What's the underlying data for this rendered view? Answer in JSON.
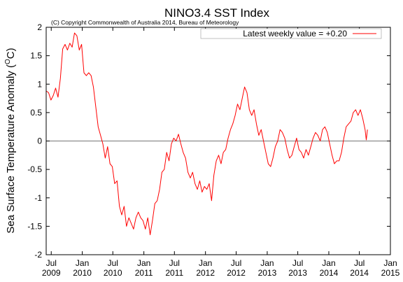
{
  "chart_data": {
    "type": "line",
    "title": "NINO3.4 SST Index",
    "subtitle": "(C) Copyright Commonwealth of Australia 2014, Bureau of Meteorology",
    "ylabel": "Sea Surface Temperature Anomaly (",
    "ylabel_unit": "C",
    "ylabel_sup": "O",
    "ylabel_close": ")",
    "xlabel": "",
    "ylim": [
      -2,
      2
    ],
    "yticks": [
      -2,
      -1.5,
      -1,
      -0.5,
      0,
      0.5,
      1,
      1.5,
      2
    ],
    "ytick_labels": [
      "-2",
      "-1.5",
      "-1",
      "-0.5",
      "0",
      "0.5",
      "1",
      "1.5",
      "2"
    ],
    "xlim": [
      "2009-06-01",
      "2015-01-01"
    ],
    "xticks": [
      {
        "date": "2009-07-01",
        "month": "Jul",
        "year": "2009"
      },
      {
        "date": "2010-01-01",
        "month": "Jan",
        "year": "2010"
      },
      {
        "date": "2010-07-01",
        "month": "Jul",
        "year": "2010"
      },
      {
        "date": "2011-01-01",
        "month": "Jan",
        "year": "2011"
      },
      {
        "date": "2011-07-01",
        "month": "Jul",
        "year": "2011"
      },
      {
        "date": "2012-01-01",
        "month": "Jan",
        "year": "2012"
      },
      {
        "date": "2012-07-01",
        "month": "Jul",
        "year": "2012"
      },
      {
        "date": "2013-01-01",
        "month": "Jan",
        "year": "2013"
      },
      {
        "date": "2013-07-01",
        "month": "Jul",
        "year": "2013"
      },
      {
        "date": "2014-01-01",
        "month": "Jan",
        "year": "2014"
      },
      {
        "date": "2014-07-01",
        "month": "Jul",
        "year": "2014"
      },
      {
        "date": "2015-01-01",
        "month": "Jan",
        "year": "2015"
      }
    ],
    "zero_line": true,
    "grid": false,
    "legend_position": "top-right",
    "series": [
      {
        "name": "Latest weekly value = +0.20",
        "color": "#ff0000",
        "points": [
          [
            "2009-06-01",
            0.88
          ],
          [
            "2009-06-15",
            0.85
          ],
          [
            "2009-06-29",
            0.72
          ],
          [
            "2009-07-13",
            0.8
          ],
          [
            "2009-07-27",
            0.93
          ],
          [
            "2009-08-10",
            0.77
          ],
          [
            "2009-08-24",
            1.1
          ],
          [
            "2009-09-07",
            1.62
          ],
          [
            "2009-09-21",
            1.7
          ],
          [
            "2009-10-05",
            1.6
          ],
          [
            "2009-10-19",
            1.72
          ],
          [
            "2009-11-02",
            1.65
          ],
          [
            "2009-11-16",
            1.9
          ],
          [
            "2009-11-30",
            1.85
          ],
          [
            "2009-12-14",
            1.6
          ],
          [
            "2009-12-28",
            1.7
          ],
          [
            "2010-01-11",
            1.2
          ],
          [
            "2010-01-25",
            1.15
          ],
          [
            "2010-02-08",
            1.2
          ],
          [
            "2010-02-22",
            1.15
          ],
          [
            "2010-03-08",
            0.95
          ],
          [
            "2010-03-22",
            0.6
          ],
          [
            "2010-04-05",
            0.25
          ],
          [
            "2010-04-19",
            0.1
          ],
          [
            "2010-05-03",
            -0.05
          ],
          [
            "2010-05-17",
            -0.3
          ],
          [
            "2010-05-31",
            -0.1
          ],
          [
            "2010-06-14",
            -0.4
          ],
          [
            "2010-06-28",
            -0.45
          ],
          [
            "2010-07-12",
            -0.75
          ],
          [
            "2010-07-26",
            -0.7
          ],
          [
            "2010-08-09",
            -1.15
          ],
          [
            "2010-08-23",
            -1.3
          ],
          [
            "2010-09-06",
            -1.15
          ],
          [
            "2010-09-20",
            -1.5
          ],
          [
            "2010-10-04",
            -1.35
          ],
          [
            "2010-10-18",
            -1.45
          ],
          [
            "2010-11-01",
            -1.55
          ],
          [
            "2010-11-15",
            -1.35
          ],
          [
            "2010-11-29",
            -1.25
          ],
          [
            "2010-12-13",
            -1.35
          ],
          [
            "2010-12-27",
            -1.4
          ],
          [
            "2011-01-10",
            -1.55
          ],
          [
            "2011-01-24",
            -1.35
          ],
          [
            "2011-02-07",
            -1.65
          ],
          [
            "2011-02-21",
            -1.4
          ],
          [
            "2011-03-07",
            -1.1
          ],
          [
            "2011-03-21",
            -1.05
          ],
          [
            "2011-04-04",
            -0.85
          ],
          [
            "2011-04-18",
            -0.55
          ],
          [
            "2011-05-02",
            -0.5
          ],
          [
            "2011-05-16",
            -0.2
          ],
          [
            "2011-05-30",
            -0.35
          ],
          [
            "2011-06-13",
            -0.05
          ],
          [
            "2011-06-27",
            0.05
          ],
          [
            "2011-07-11",
            0.0
          ],
          [
            "2011-07-25",
            0.12
          ],
          [
            "2011-08-08",
            -0.05
          ],
          [
            "2011-08-22",
            -0.2
          ],
          [
            "2011-09-05",
            -0.3
          ],
          [
            "2011-09-19",
            -0.55
          ],
          [
            "2011-10-03",
            -0.65
          ],
          [
            "2011-10-17",
            -0.55
          ],
          [
            "2011-10-31",
            -0.75
          ],
          [
            "2011-11-14",
            -0.85
          ],
          [
            "2011-11-28",
            -0.7
          ],
          [
            "2011-12-12",
            -0.9
          ],
          [
            "2011-12-26",
            -0.8
          ],
          [
            "2012-01-09",
            -0.85
          ],
          [
            "2012-01-23",
            -0.75
          ],
          [
            "2012-02-06",
            -1.05
          ],
          [
            "2012-02-20",
            -0.6
          ],
          [
            "2012-03-05",
            -0.35
          ],
          [
            "2012-03-19",
            -0.25
          ],
          [
            "2012-04-02",
            -0.4
          ],
          [
            "2012-04-16",
            -0.2
          ],
          [
            "2012-04-30",
            -0.15
          ],
          [
            "2012-05-14",
            0.05
          ],
          [
            "2012-05-28",
            0.2
          ],
          [
            "2012-06-11",
            0.3
          ],
          [
            "2012-06-25",
            0.45
          ],
          [
            "2012-07-09",
            0.65
          ],
          [
            "2012-07-23",
            0.55
          ],
          [
            "2012-08-06",
            0.75
          ],
          [
            "2012-08-20",
            0.95
          ],
          [
            "2012-09-03",
            0.85
          ],
          [
            "2012-09-17",
            0.55
          ],
          [
            "2012-10-01",
            0.45
          ],
          [
            "2012-10-15",
            0.55
          ],
          [
            "2012-10-29",
            0.3
          ],
          [
            "2012-11-12",
            0.1
          ],
          [
            "2012-11-26",
            0.2
          ],
          [
            "2012-12-10",
            0.0
          ],
          [
            "2012-12-24",
            -0.2
          ],
          [
            "2013-01-07",
            -0.4
          ],
          [
            "2013-01-21",
            -0.45
          ],
          [
            "2013-02-04",
            -0.3
          ],
          [
            "2013-02-18",
            -0.1
          ],
          [
            "2013-03-04",
            0.0
          ],
          [
            "2013-03-18",
            0.2
          ],
          [
            "2013-04-01",
            0.15
          ],
          [
            "2013-04-15",
            0.05
          ],
          [
            "2013-04-29",
            -0.15
          ],
          [
            "2013-05-13",
            -0.3
          ],
          [
            "2013-05-27",
            -0.25
          ],
          [
            "2013-06-10",
            -0.1
          ],
          [
            "2013-06-24",
            0.05
          ],
          [
            "2013-07-08",
            -0.15
          ],
          [
            "2013-07-22",
            -0.2
          ],
          [
            "2013-08-05",
            -0.3
          ],
          [
            "2013-08-19",
            -0.15
          ],
          [
            "2013-09-02",
            -0.25
          ],
          [
            "2013-09-16",
            -0.1
          ],
          [
            "2013-09-30",
            0.05
          ],
          [
            "2013-10-14",
            0.15
          ],
          [
            "2013-10-28",
            0.1
          ],
          [
            "2013-11-11",
            0.0
          ],
          [
            "2013-11-25",
            0.2
          ],
          [
            "2013-12-09",
            0.25
          ],
          [
            "2013-12-23",
            0.15
          ],
          [
            "2014-01-06",
            -0.05
          ],
          [
            "2014-01-20",
            -0.25
          ],
          [
            "2014-02-03",
            -0.4
          ],
          [
            "2014-02-17",
            -0.35
          ],
          [
            "2014-03-03",
            -0.35
          ],
          [
            "2014-03-17",
            -0.2
          ],
          [
            "2014-03-31",
            0.05
          ],
          [
            "2014-04-14",
            0.25
          ],
          [
            "2014-04-28",
            0.3
          ],
          [
            "2014-05-12",
            0.35
          ],
          [
            "2014-05-26",
            0.5
          ],
          [
            "2014-06-09",
            0.55
          ],
          [
            "2014-06-23",
            0.45
          ],
          [
            "2014-07-07",
            0.55
          ],
          [
            "2014-07-21",
            0.4
          ],
          [
            "2014-08-04",
            0.2
          ],
          [
            "2014-08-11",
            0.02
          ],
          [
            "2014-08-18",
            0.2
          ]
        ]
      }
    ]
  }
}
